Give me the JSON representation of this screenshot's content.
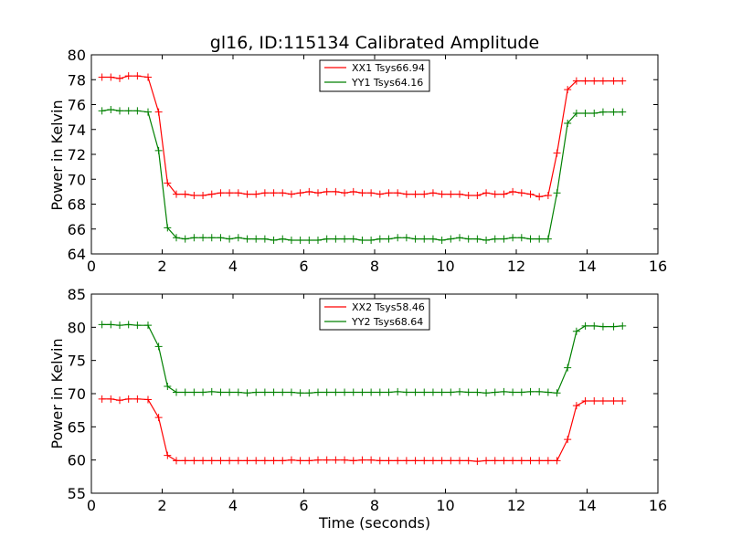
{
  "chart_data": [
    {
      "type": "line",
      "title": "gl16, ID:115134 Calibrated Amplitude",
      "xlabel": "",
      "ylabel": "Power in Kelvin",
      "xlim": [
        0,
        16
      ],
      "ylim": [
        64,
        80
      ],
      "xticks": [
        0,
        2,
        4,
        6,
        8,
        10,
        12,
        14,
        16
      ],
      "yticks": [
        64,
        66,
        68,
        70,
        72,
        74,
        76,
        78,
        80
      ],
      "legend_position": "top-center",
      "x": [
        0.3,
        0.55,
        0.8,
        1.05,
        1.3,
        1.6,
        1.9,
        2.15,
        2.4,
        2.65,
        2.9,
        3.15,
        3.4,
        3.65,
        3.9,
        4.15,
        4.4,
        4.65,
        4.9,
        5.15,
        5.4,
        5.65,
        5.9,
        6.15,
        6.4,
        6.65,
        6.9,
        7.15,
        7.4,
        7.65,
        7.9,
        8.15,
        8.4,
        8.65,
        8.9,
        9.15,
        9.4,
        9.65,
        9.9,
        10.15,
        10.4,
        10.65,
        10.9,
        11.15,
        11.4,
        11.65,
        11.9,
        12.15,
        12.4,
        12.65,
        12.9,
        13.15,
        13.45,
        13.7,
        13.95,
        14.2,
        14.45,
        14.75,
        15.0
      ],
      "series": [
        {
          "name": "XX1 Tsys66.94",
          "color": "#ff0000",
          "values": [
            78.2,
            78.2,
            78.1,
            78.3,
            78.3,
            78.2,
            75.4,
            69.7,
            68.8,
            68.8,
            68.7,
            68.7,
            68.8,
            68.9,
            68.9,
            68.9,
            68.8,
            68.8,
            68.9,
            68.9,
            68.9,
            68.8,
            68.9,
            69.0,
            68.9,
            69.0,
            69.0,
            68.9,
            69.0,
            68.9,
            68.9,
            68.8,
            68.9,
            68.9,
            68.8,
            68.8,
            68.8,
            68.9,
            68.8,
            68.8,
            68.8,
            68.7,
            68.7,
            68.9,
            68.8,
            68.8,
            69.0,
            68.9,
            68.8,
            68.6,
            68.7,
            72.1,
            77.2,
            77.9,
            77.9,
            77.9,
            77.9,
            77.9,
            77.9
          ]
        },
        {
          "name": "YY1 Tsys64.16",
          "color": "#008000",
          "values": [
            75.5,
            75.6,
            75.5,
            75.5,
            75.5,
            75.4,
            72.3,
            66.1,
            65.3,
            65.2,
            65.3,
            65.3,
            65.3,
            65.3,
            65.2,
            65.3,
            65.2,
            65.2,
            65.2,
            65.1,
            65.2,
            65.1,
            65.1,
            65.1,
            65.1,
            65.2,
            65.2,
            65.2,
            65.2,
            65.1,
            65.1,
            65.2,
            65.2,
            65.3,
            65.3,
            65.2,
            65.2,
            65.2,
            65.1,
            65.2,
            65.3,
            65.2,
            65.2,
            65.1,
            65.2,
            65.2,
            65.3,
            65.3,
            65.2,
            65.2,
            65.2,
            68.9,
            74.5,
            75.3,
            75.3,
            75.3,
            75.4,
            75.4,
            75.4
          ]
        }
      ]
    },
    {
      "type": "line",
      "title": "",
      "xlabel": "Time (seconds)",
      "ylabel": "Power in Kelvin",
      "xlim": [
        0,
        16
      ],
      "ylim": [
        55,
        85
      ],
      "xticks": [
        0,
        2,
        4,
        6,
        8,
        10,
        12,
        14,
        16
      ],
      "yticks": [
        55,
        60,
        65,
        70,
        75,
        80,
        85
      ],
      "legend_position": "top-center",
      "x": [
        0.3,
        0.55,
        0.8,
        1.05,
        1.3,
        1.6,
        1.9,
        2.15,
        2.4,
        2.65,
        2.9,
        3.15,
        3.4,
        3.65,
        3.9,
        4.15,
        4.4,
        4.65,
        4.9,
        5.15,
        5.4,
        5.65,
        5.9,
        6.15,
        6.4,
        6.65,
        6.9,
        7.15,
        7.4,
        7.65,
        7.9,
        8.15,
        8.4,
        8.65,
        8.9,
        9.15,
        9.4,
        9.65,
        9.9,
        10.15,
        10.4,
        10.65,
        10.9,
        11.15,
        11.4,
        11.65,
        11.9,
        12.15,
        12.4,
        12.65,
        12.9,
        13.15,
        13.45,
        13.7,
        13.95,
        14.2,
        14.45,
        14.75,
        15.0
      ],
      "series": [
        {
          "name": "XX2 Tsys58.46",
          "color": "#ff0000",
          "values": [
            69.2,
            69.2,
            69.0,
            69.2,
            69.2,
            69.1,
            66.4,
            60.7,
            59.9,
            59.9,
            59.9,
            59.9,
            59.9,
            59.9,
            59.9,
            59.9,
            59.9,
            59.9,
            59.9,
            59.9,
            59.9,
            60.0,
            59.9,
            59.9,
            60.0,
            60.0,
            60.0,
            60.0,
            59.9,
            60.0,
            60.0,
            59.9,
            59.9,
            59.9,
            59.9,
            59.9,
            59.9,
            59.9,
            59.9,
            59.9,
            59.9,
            59.9,
            59.8,
            59.9,
            59.9,
            59.9,
            59.9,
            59.9,
            59.9,
            59.9,
            59.9,
            59.9,
            63.1,
            68.2,
            68.9,
            68.9,
            68.9,
            68.9,
            68.9
          ]
        },
        {
          "name": "YY2 Tsys68.64",
          "color": "#008000",
          "values": [
            80.4,
            80.4,
            80.3,
            80.4,
            80.3,
            80.3,
            77.1,
            71.1,
            70.2,
            70.2,
            70.2,
            70.2,
            70.3,
            70.2,
            70.2,
            70.2,
            70.1,
            70.2,
            70.2,
            70.2,
            70.2,
            70.2,
            70.1,
            70.1,
            70.2,
            70.2,
            70.2,
            70.2,
            70.2,
            70.2,
            70.2,
            70.2,
            70.2,
            70.3,
            70.2,
            70.2,
            70.2,
            70.2,
            70.2,
            70.2,
            70.3,
            70.2,
            70.2,
            70.1,
            70.2,
            70.3,
            70.2,
            70.2,
            70.3,
            70.3,
            70.2,
            70.1,
            73.9,
            79.4,
            80.2,
            80.2,
            80.1,
            80.1,
            80.2
          ]
        }
      ]
    }
  ]
}
